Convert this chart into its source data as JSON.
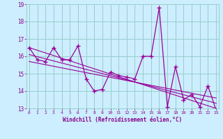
{
  "x": [
    0,
    1,
    2,
    3,
    4,
    5,
    6,
    7,
    8,
    9,
    10,
    11,
    12,
    13,
    14,
    15,
    16,
    17,
    18,
    19,
    20,
    21,
    22,
    23
  ],
  "windchill": [
    16.5,
    15.8,
    15.7,
    16.5,
    15.8,
    15.8,
    16.6,
    14.7,
    14.0,
    14.1,
    15.1,
    14.9,
    14.8,
    14.7,
    16.0,
    16.0,
    18.8,
    13.1,
    15.4,
    13.5,
    13.8,
    13.1,
    14.3,
    12.9
  ],
  "trend1_x": [
    0,
    23
  ],
  "trend1_y": [
    16.5,
    13.0
  ],
  "trend2_x": [
    0,
    23
  ],
  "trend2_y": [
    16.1,
    13.3
  ],
  "trend3_x": [
    0,
    23
  ],
  "trend3_y": [
    15.7,
    13.6
  ],
  "ylim": [
    13,
    19
  ],
  "yticks": [
    13,
    14,
    15,
    16,
    17,
    18,
    19
  ],
  "xlim": [
    -0.3,
    23.3
  ],
  "xlabel": "Windchill (Refroidissement éolien,°C)",
  "line_color": "#990099",
  "bg_color": "#cceeff",
  "grid_color": "#99cccc",
  "label_color": "#880088"
}
